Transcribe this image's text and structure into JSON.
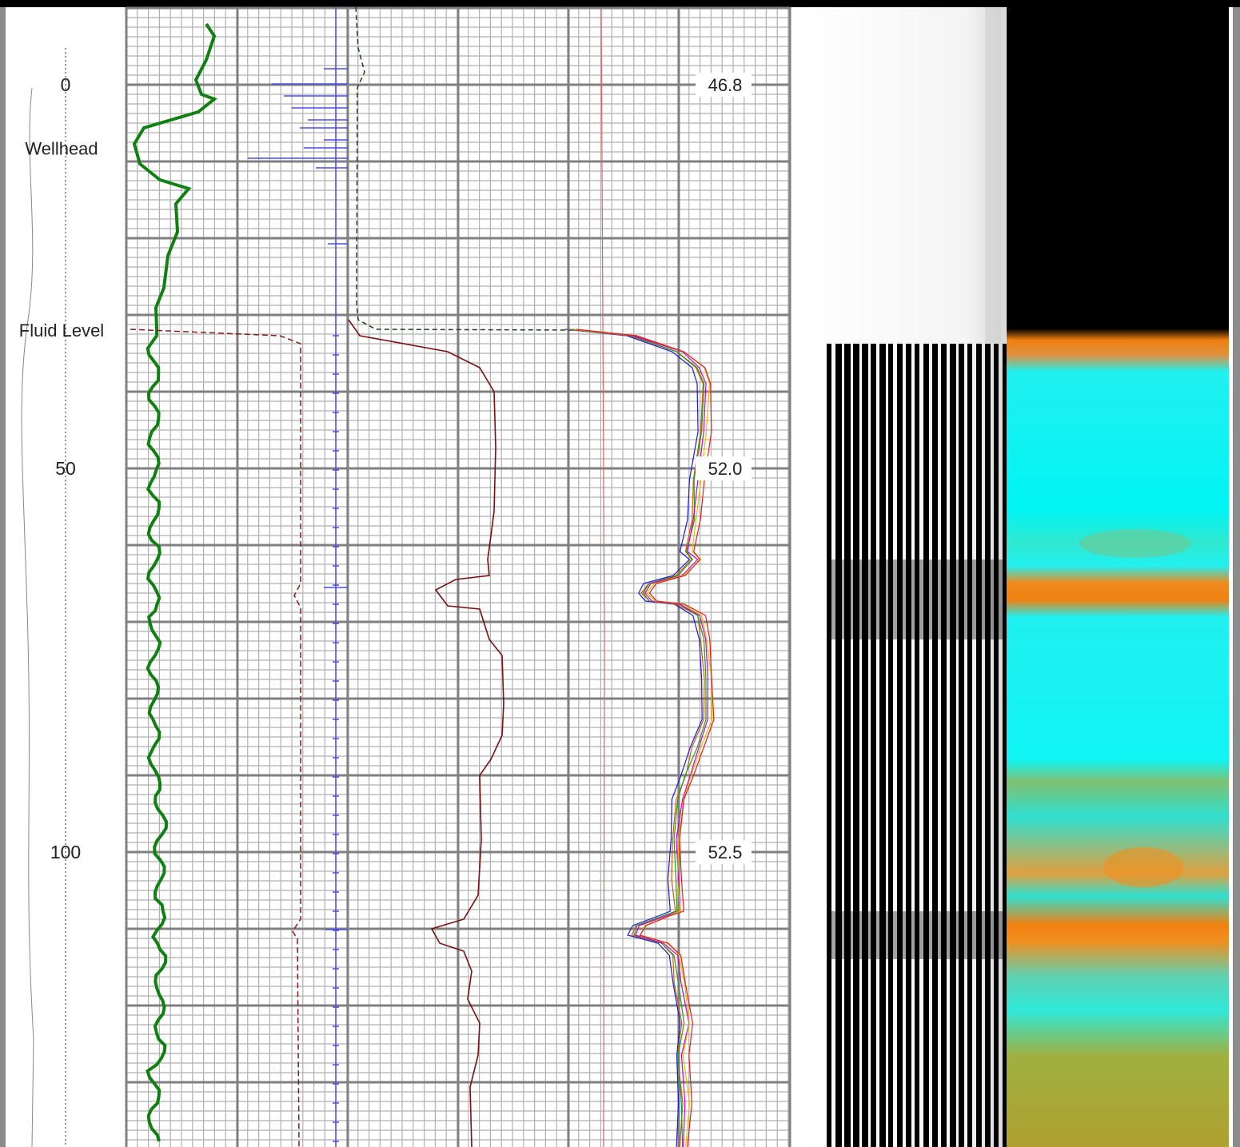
{
  "depth_track": {
    "depth_labels": [
      {
        "text": "0",
        "depth": 0
      },
      {
        "text": "50",
        "depth": 50
      },
      {
        "text": "100",
        "depth": 100
      }
    ],
    "markers": [
      {
        "text": "Wellhead",
        "depth": 8.3
      },
      {
        "text": "Fluid Level",
        "depth": 32.0
      }
    ]
  },
  "grid_scale_labels": [
    {
      "text": "46.8",
      "depth": 0
    },
    {
      "text": "52.0",
      "depth": 50
    },
    {
      "text": "52.5",
      "depth": 100
    }
  ],
  "colors": {
    "gr_curve": "#108010",
    "acoustic_curve": "#4a4ae8",
    "red_dashed": "#8b1a1a",
    "maroon_curve": "#7a0f0f",
    "multi_curves": [
      "#1a1ae0",
      "#d06000",
      "#20a020",
      "#d000d0",
      "#e0c000",
      "#e02020"
    ],
    "thin_red": "#e06060",
    "grid_major": "#808080",
    "grid_minor": "#b0b0b0",
    "map_black": "#000000",
    "map_orange": "#f08000",
    "map_cyan": "#00f0f0"
  },
  "vdl_track": {
    "name": "vdl-image"
  },
  "color_map_track": {
    "name": "color-map"
  }
}
